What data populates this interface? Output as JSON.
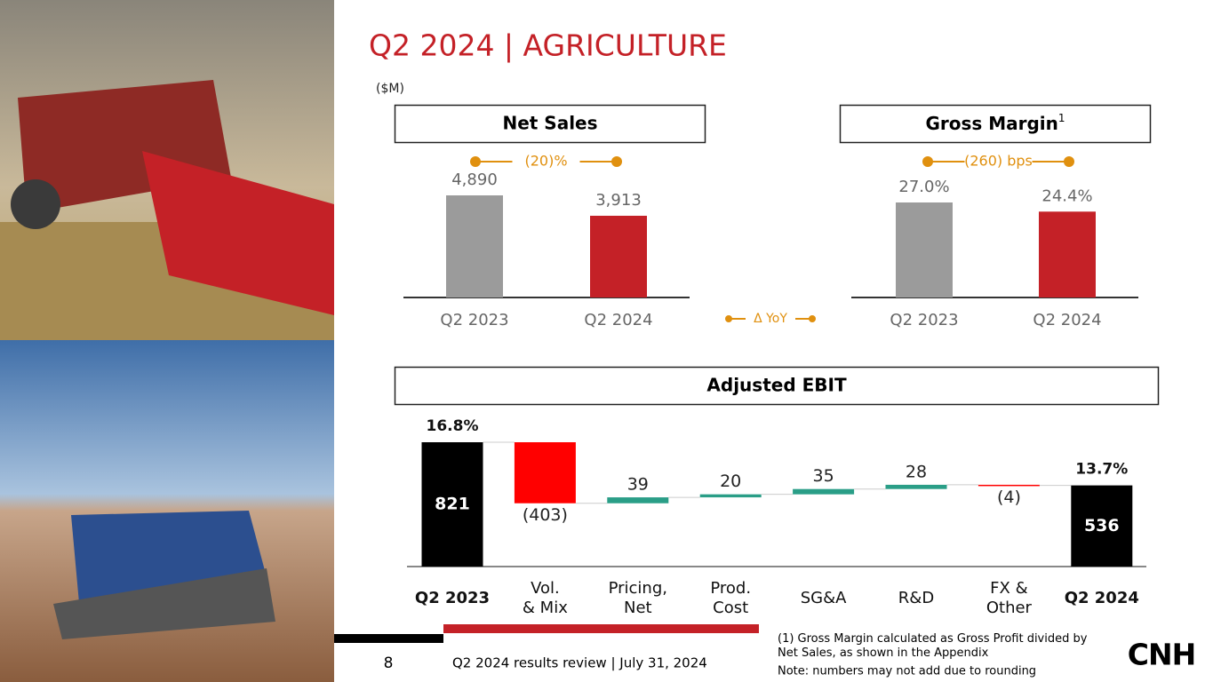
{
  "title": "Q2 2024 | AGRICULTURE",
  "unit": "($M)",
  "chart_data": [
    {
      "type": "bar",
      "title": "Net Sales",
      "categories": [
        "Q2 2023",
        "Q2 2024"
      ],
      "values": [
        4890,
        3913
      ],
      "value_labels": [
        "4,890",
        "3,913"
      ],
      "colors": [
        "#9b9b9b",
        "#c42127"
      ],
      "change": "(20)%"
    },
    {
      "type": "bar",
      "title": "Gross Margin",
      "title_note": "1",
      "categories": [
        "Q2 2023",
        "Q2 2024"
      ],
      "values": [
        27.0,
        24.4
      ],
      "value_labels": [
        "27.0%",
        "24.4%"
      ],
      "colors": [
        "#9b9b9b",
        "#c42127"
      ],
      "change": "(260) bps"
    },
    {
      "type": "waterfall",
      "title": "Adjusted EBIT",
      "categories": [
        "Q2 2023",
        "Vol.\n& Mix",
        "Pricing,\nNet",
        "Prod.\nCost",
        "SG&A",
        "R&D",
        "FX &\nOther",
        "Q2 2024"
      ],
      "values": [
        821,
        -403,
        39,
        20,
        35,
        28,
        -4,
        536
      ],
      "value_labels": [
        "821",
        "(403)",
        "39",
        "20",
        "35",
        "28",
        "(4)",
        "536"
      ],
      "totals": [
        0,
        7
      ],
      "color_total": "#000000",
      "color_increase": "#2a9e87",
      "color_decrease": "#ff0000",
      "margins": {
        "values": [
          16.8,
          13.7
        ],
        "value_labels": [
          "16.8%",
          "13.7%"
        ]
      }
    }
  ],
  "legend": "Δ YoY",
  "legend_color": "#e0900f",
  "footer": {
    "page": "8",
    "text": "Q2 2024 results review | July 31, 2024",
    "note1": "(1) Gross Margin calculated as Gross Profit divided by\nNet Sales, as shown in the Appendix",
    "note2": "Note: numbers may not add due to rounding",
    "logo": "CNH"
  }
}
